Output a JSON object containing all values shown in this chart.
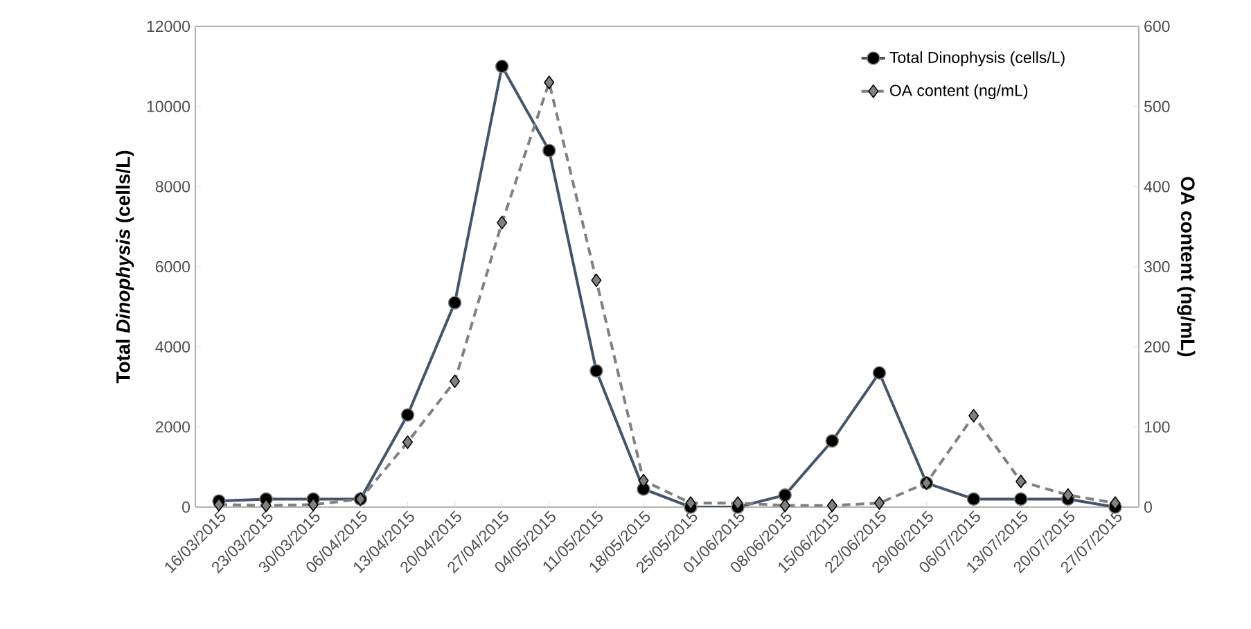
{
  "chart_data": {
    "type": "line",
    "ylabel": "Total *Dinophysis* (cells/L)",
    "y2label": "OA content (ng/mL)",
    "categories": [
      "16/03/2015",
      "23/03/2015",
      "30/03/2015",
      "06/04/2015",
      "13/04/2015",
      "20/04/2015",
      "27/04/2015",
      "04/05/2015",
      "11/05/2015",
      "18/05/2015",
      "25/05/2015",
      "01/06/2015",
      "08/06/2015",
      "15/06/2015",
      "22/06/2015",
      "29/06/2015",
      "06/07/2015",
      "13/07/2015",
      "20/07/2015",
      "27/07/2015"
    ],
    "series": [
      {
        "name": "Total Dinophysis  (cells/L)",
        "color": "#44546a",
        "marker": "circle",
        "line_style": "solid",
        "values": [
          150,
          200,
          200,
          200,
          2300,
          5100,
          11000,
          8900,
          3400,
          450,
          0,
          0,
          300,
          1650,
          3350,
          600,
          200,
          200,
          200,
          0
        ]
      },
      {
        "name": "OA content (ng/mL)",
        "color": "#808080",
        "marker": "diamond",
        "line_style": "dashed",
        "axis": "y2",
        "values": [
          3,
          2,
          3,
          10,
          81,
          157,
          355,
          530,
          283,
          33,
          5,
          5,
          2,
          2,
          5,
          30,
          114,
          32,
          15,
          5
        ]
      }
    ],
    "ylim": [
      0,
      12000
    ],
    "yticks": [
      0,
      2000,
      4000,
      6000,
      8000,
      10000,
      12000
    ],
    "y2lim": [
      0,
      600
    ],
    "y2ticks": [
      0,
      100,
      200,
      300,
      400,
      500,
      600
    ],
    "grid": false,
    "legend": "top right"
  }
}
